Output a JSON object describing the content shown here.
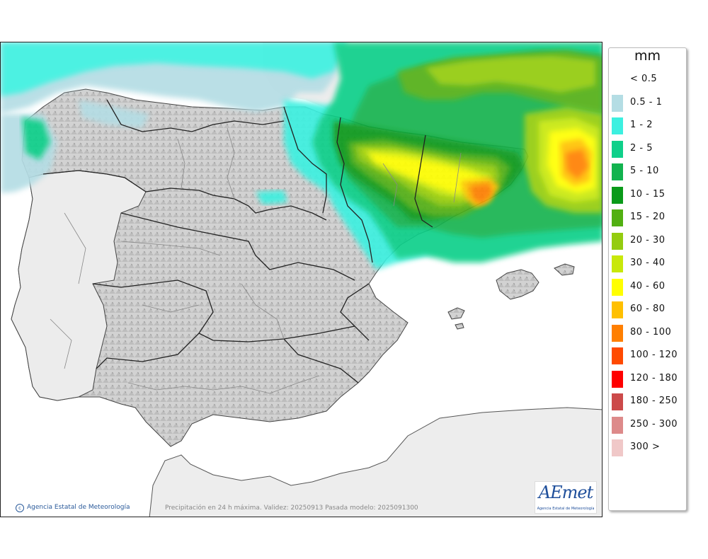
{
  "legend": {
    "unit": "mm",
    "items": [
      {
        "label": "< 0.5",
        "color": "#ffffff"
      },
      {
        "label": "0.5 - 1",
        "color": "#b4dde4"
      },
      {
        "label": "1 - 2",
        "color": "#3cf0e0"
      },
      {
        "label": "2 - 5",
        "color": "#0fd08a"
      },
      {
        "label": "5 - 10",
        "color": "#12b34f"
      },
      {
        "label": "10 - 15",
        "color": "#0a9a1a"
      },
      {
        "label": "15 - 20",
        "color": "#52b012"
      },
      {
        "label": "20 - 30",
        "color": "#94cc10"
      },
      {
        "label": "30 - 40",
        "color": "#c8e80a"
      },
      {
        "label": "40 - 60",
        "color": "#ffff00"
      },
      {
        "label": "60 - 80",
        "color": "#ffc000"
      },
      {
        "label": "80 - 100",
        "color": "#ff7f00"
      },
      {
        "label": "100 - 120",
        "color": "#ff4a00"
      },
      {
        "label": "120 - 180",
        "color": "#ff0000"
      },
      {
        "label": "180 - 250",
        "color": "#cc4a4a"
      },
      {
        "label": "250 - 300",
        "color": "#dd8a8a"
      },
      {
        "label": "300 >",
        "color": "#f0c8c8"
      }
    ]
  },
  "footer": {
    "credit": "Agencia Estatal de Meteorología",
    "caption": "Precipitación en 24 h máxima. Validez: 20250913 Pasada modelo: 2025091300"
  },
  "logo": {
    "text": "AEmet",
    "subtitle": "Agencia Estatal de Meteorología"
  }
}
